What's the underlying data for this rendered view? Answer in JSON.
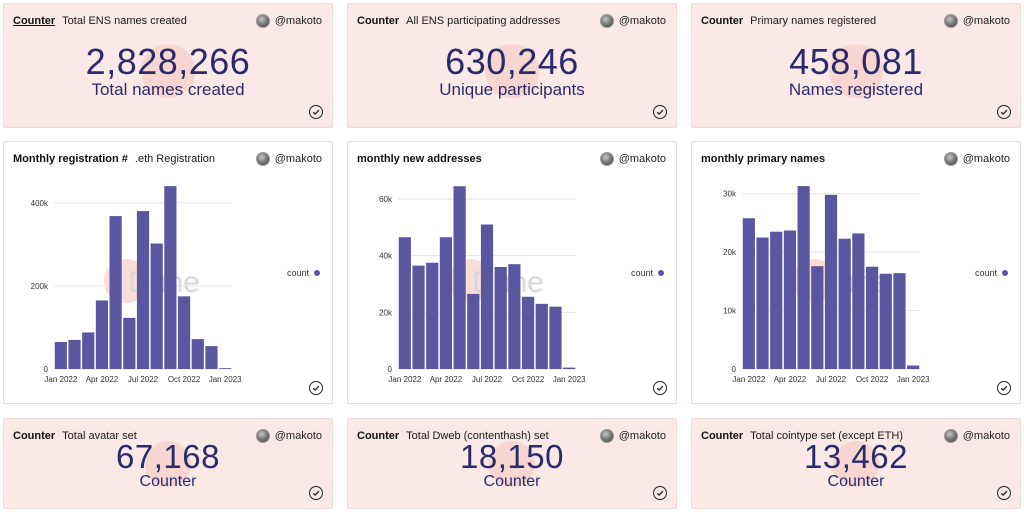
{
  "author": "@makoto",
  "colors": {
    "bar": "#5a57a0",
    "counter_bg": "#fbe9e7",
    "number": "#2b2a6b"
  },
  "icons": {
    "check": "check-circle-icon",
    "avatar": "avatar"
  },
  "counters_top": [
    {
      "kind": "Counter",
      "title": "Total ENS names created",
      "value": "2,828,266",
      "label": "Total names created"
    },
    {
      "kind": "Counter",
      "title": "All ENS participating addresses",
      "value": "630,246",
      "label": "Unique participants"
    },
    {
      "kind": "Counter",
      "title": "Primary names registered",
      "value": "458,081",
      "label": "Names registered"
    }
  ],
  "counters_bottom": [
    {
      "kind": "Counter",
      "title": "Total avatar set",
      "value": "67,168",
      "label": "Counter"
    },
    {
      "kind": "Counter",
      "title": "Total Dweb (contenthash) set",
      "value": "18,150",
      "label": "Counter"
    },
    {
      "kind": "Counter",
      "title": "Total cointype set (except ETH)",
      "value": "13,462",
      "label": "Counter"
    }
  ],
  "charts": [
    {
      "title_bold": "Monthly registration #",
      "title": ".eth Registration",
      "watermark": "Dune",
      "legend": "count"
    },
    {
      "title_bold": "monthly new addresses",
      "title": "",
      "watermark": "Dune",
      "legend": "count"
    },
    {
      "title_bold": "monthly primary names",
      "title": "",
      "watermark": "Dune",
      "legend": "count"
    }
  ],
  "chart_data": [
    {
      "type": "bar",
      "title": "Monthly registration # .eth Registration",
      "xlabel": "",
      "ylabel": "",
      "ylim": [
        0,
        450000
      ],
      "yticks": [
        0,
        200000,
        400000
      ],
      "ytick_labels": [
        "0",
        "200k",
        "400k"
      ],
      "xtick_labels": [
        "Jan 2022",
        "Apr 2022",
        "Jul 2022",
        "Oct 2022",
        "Jan 2023"
      ],
      "xtick_index": [
        0,
        3,
        6,
        9,
        12
      ],
      "grid": true,
      "legend_position": "right",
      "series": [
        {
          "name": "count",
          "values": [
            65000,
            70000,
            88000,
            165000,
            368000,
            123000,
            380000,
            302000,
            440000,
            175000,
            72000,
            55000,
            2000
          ]
        }
      ]
    },
    {
      "type": "bar",
      "title": "monthly new addresses",
      "xlabel": "",
      "ylabel": "",
      "ylim": [
        0,
        66000
      ],
      "yticks": [
        0,
        20000,
        40000,
        60000
      ],
      "ytick_labels": [
        "0",
        "20k",
        "40k",
        "60k"
      ],
      "xtick_labels": [
        "Jan 2022",
        "Apr 2022",
        "Jul 2022",
        "Oct 2022",
        "Jan 2023"
      ],
      "xtick_index": [
        0,
        3,
        6,
        9,
        12
      ],
      "grid": true,
      "legend_position": "right",
      "series": [
        {
          "name": "count",
          "values": [
            46500,
            36500,
            37500,
            46500,
            64500,
            26500,
            51000,
            36000,
            37000,
            25500,
            23000,
            22000,
            500
          ]
        }
      ]
    },
    {
      "type": "bar",
      "title": "monthly primary names",
      "xlabel": "",
      "ylabel": "",
      "ylim": [
        0,
        32000
      ],
      "yticks": [
        0,
        10000,
        20000,
        30000
      ],
      "ytick_labels": [
        "0",
        "10k",
        "20k",
        "30k"
      ],
      "xtick_labels": [
        "Jan 2022",
        "Apr 2022",
        "Jul 2022",
        "Oct 2022",
        "Jan 2023"
      ],
      "xtick_index": [
        0,
        3,
        6,
        9,
        12
      ],
      "grid": true,
      "legend_position": "right",
      "series": [
        {
          "name": "count",
          "values": [
            25800,
            22500,
            23500,
            23700,
            31300,
            17600,
            29800,
            22300,
            23200,
            17500,
            16300,
            16400,
            600
          ]
        }
      ]
    }
  ]
}
